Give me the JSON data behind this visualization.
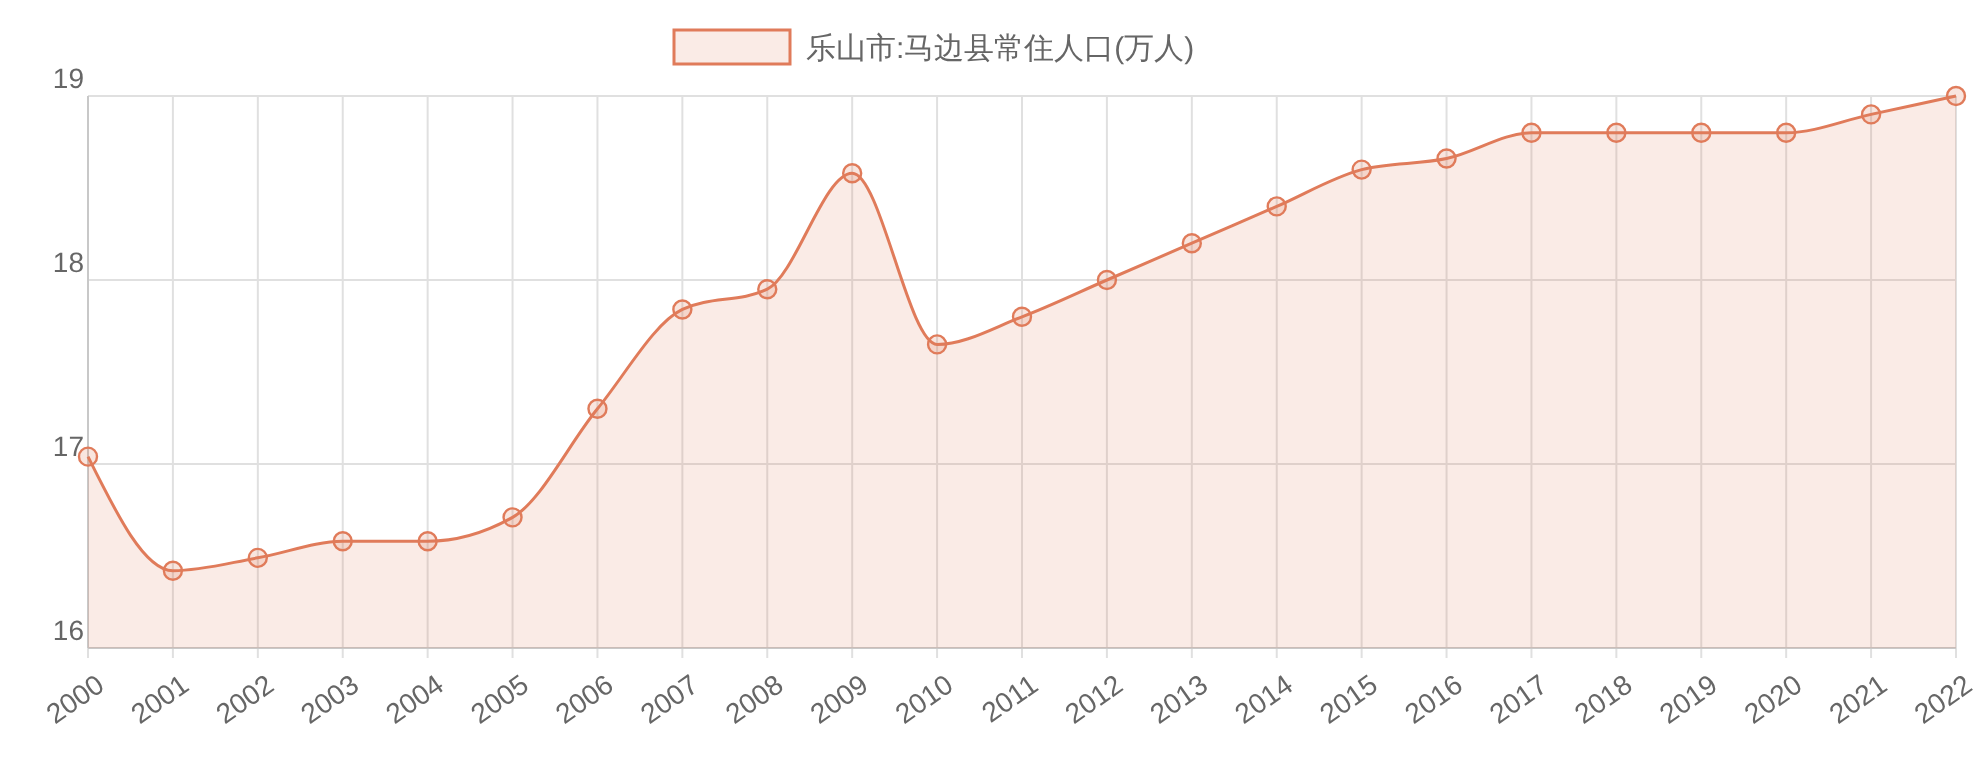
{
  "chart_data": {
    "type": "area",
    "categories": [
      "2000",
      "2001",
      "2002",
      "2003",
      "2004",
      "2005",
      "2006",
      "2007",
      "2008",
      "2009",
      "2010",
      "2011",
      "2012",
      "2013",
      "2014",
      "2015",
      "2016",
      "2017",
      "2018",
      "2019",
      "2020",
      "2021",
      "2022"
    ],
    "series": [
      {
        "name": "乐山市:马边县常住人口(万人)",
        "color": "#e07b5a",
        "values": [
          17.04,
          16.42,
          16.49,
          16.58,
          16.58,
          16.71,
          17.3,
          17.84,
          17.95,
          18.58,
          17.65,
          17.8,
          18.0,
          18.2,
          18.4,
          18.6,
          18.66,
          18.8,
          18.8,
          18.8,
          18.8,
          18.9,
          19.0
        ]
      }
    ],
    "ylim": [
      16,
      19
    ],
    "yticks": [
      16,
      17,
      18,
      19
    ],
    "grid": true,
    "legend": "top",
    "marker": "circle",
    "line_style": "solid"
  }
}
